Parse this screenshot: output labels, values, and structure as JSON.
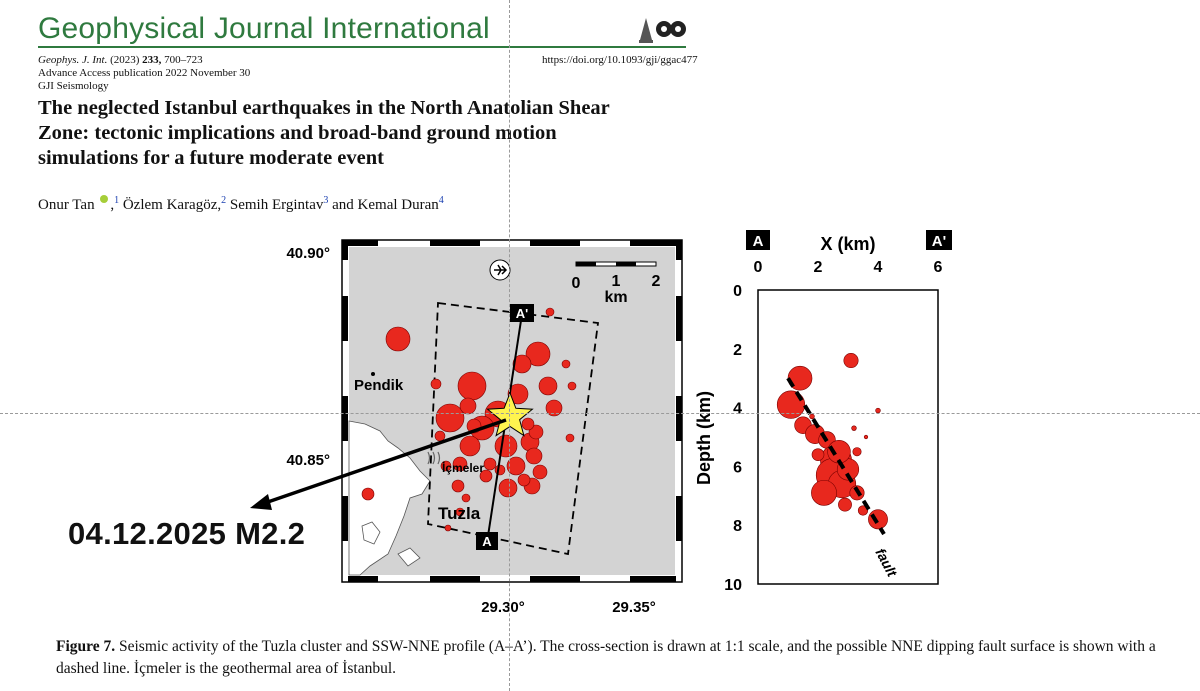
{
  "journal": {
    "name": "Geophysical Journal International",
    "citation_journal": "Geophys. J. Int.",
    "citation_year": "(2023)",
    "citation_volume": "233,",
    "citation_pages": "700–723",
    "doi": "https://doi.org/10.1093/gji/ggac477",
    "advance_access": "Advance Access publication 2022 November 30",
    "section": "GJI Seismology"
  },
  "paper": {
    "title_line1": "The neglected Istanbul earthquakes in the North Anatolian Shear",
    "title_line2": "Zone: tectonic implications and broad-band ground motion",
    "title_line3": "simulations for a future moderate event",
    "authors": [
      {
        "name": "Onur Tan",
        "sup": "1"
      },
      {
        "name": "Özlem Karagöz,",
        "sup": "2"
      },
      {
        "name": "Semih Ergintav",
        "sup": "3"
      },
      {
        "name": "Kemal Duran",
        "sup": "4"
      }
    ],
    "and_word": "and"
  },
  "annotation": {
    "event_label": "04.12.2025 M2.2"
  },
  "map": {
    "lat_labels": [
      "40.90°",
      "40.85°"
    ],
    "lon_labels": [
      "29.30°",
      "29.35°"
    ],
    "scale_ticks": [
      "0",
      "1",
      "2"
    ],
    "scale_unit": "km",
    "places": [
      "Pendik",
      "İçmeler",
      "Tuzla"
    ],
    "profile_start": "A",
    "profile_end": "A'",
    "event_color": "#e8281e",
    "star_color": "#fff44f",
    "land_color": "#d3d3d3"
  },
  "section": {
    "label_left": "A",
    "label_right": "A'",
    "xlabel": "X (km)",
    "ylabel": "Depth (km)",
    "x_ticks": [
      "0",
      "2",
      "4",
      "6"
    ],
    "y_ticks": [
      "0",
      "2",
      "4",
      "6",
      "8",
      "10"
    ],
    "fault_label": "fault",
    "fault_line": [
      [
        1.0,
        3.0
      ],
      [
        4.2,
        8.3
      ]
    ],
    "events": [
      {
        "x": 3.1,
        "depth": 2.4,
        "r": 1.2
      },
      {
        "x": 1.4,
        "depth": 3.0,
        "r": 2
      },
      {
        "x": 1.1,
        "depth": 3.9,
        "r": 2.3
      },
      {
        "x": 1.5,
        "depth": 4.6,
        "r": 1.4
      },
      {
        "x": 1.9,
        "depth": 4.9,
        "r": 1.6
      },
      {
        "x": 2.3,
        "depth": 5.1,
        "r": 1.4
      },
      {
        "x": 2.6,
        "depth": 5.8,
        "r": 2.6
      },
      {
        "x": 2.5,
        "depth": 6.3,
        "r": 2.8
      },
      {
        "x": 2.8,
        "depth": 6.6,
        "r": 2.3
      },
      {
        "x": 2.2,
        "depth": 6.9,
        "r": 2.1
      },
      {
        "x": 3.0,
        "depth": 6.1,
        "r": 1.8
      },
      {
        "x": 2.7,
        "depth": 5.5,
        "r": 1.9
      },
      {
        "x": 3.3,
        "depth": 6.9,
        "r": 1.2
      },
      {
        "x": 2.0,
        "depth": 5.6,
        "r": 1.0
      },
      {
        "x": 3.5,
        "depth": 7.5,
        "r": 0.8
      },
      {
        "x": 4.0,
        "depth": 7.8,
        "r": 1.6
      },
      {
        "x": 3.2,
        "depth": 4.7,
        "r": 0.4
      },
      {
        "x": 4.0,
        "depth": 4.1,
        "r": 0.4
      },
      {
        "x": 3.6,
        "depth": 5.0,
        "r": 0.3
      },
      {
        "x": 1.8,
        "depth": 4.3,
        "r": 0.4
      },
      {
        "x": 2.9,
        "depth": 7.3,
        "r": 1.1
      },
      {
        "x": 3.3,
        "depth": 5.5,
        "r": 0.7
      }
    ]
  },
  "figure": {
    "caption_label": "Figure 7.",
    "caption_text": "Seismic activity of the Tuzla cluster and SSW-NNE profile (A–A’). The cross-section is drawn at 1:1 scale, and the possible NNE dipping fault surface is shown with a dashed line. İçmeler is the geothermal area of İstanbul."
  }
}
